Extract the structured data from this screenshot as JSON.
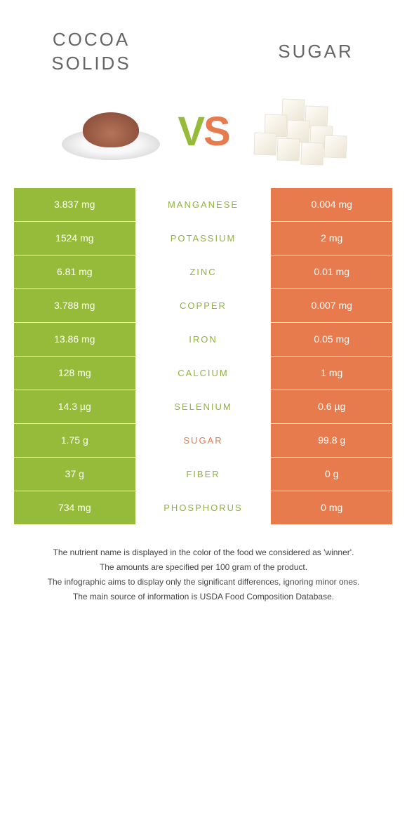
{
  "header": {
    "left_title": "COCOA SOLIDS",
    "right_title": "SUGAR"
  },
  "vs": {
    "v_letter": "V",
    "s_letter": "S",
    "left_color": "#96bb3a",
    "right_color": "#e77b4d"
  },
  "colors": {
    "left_bg": "#96bb3a",
    "right_bg": "#e77b4d",
    "mid_text_green": "#8fb43a",
    "mid_text_orange": "#e77b4d",
    "cell_text": "#ffffff"
  },
  "rows": [
    {
      "left": "3.837 mg",
      "label": "Manganese",
      "right": "0.004 mg",
      "label_color": "#8fb43a"
    },
    {
      "left": "1524 mg",
      "label": "Potassium",
      "right": "2 mg",
      "label_color": "#8fb43a"
    },
    {
      "left": "6.81 mg",
      "label": "Zinc",
      "right": "0.01 mg",
      "label_color": "#8fb43a"
    },
    {
      "left": "3.788 mg",
      "label": "Copper",
      "right": "0.007 mg",
      "label_color": "#8fb43a"
    },
    {
      "left": "13.86 mg",
      "label": "Iron",
      "right": "0.05 mg",
      "label_color": "#8fb43a"
    },
    {
      "left": "128 mg",
      "label": "Calcium",
      "right": "1 mg",
      "label_color": "#8fb43a"
    },
    {
      "left": "14.3 µg",
      "label": "Selenium",
      "right": "0.6 µg",
      "label_color": "#8fb43a"
    },
    {
      "left": "1.75 g",
      "label": "Sugar",
      "right": "99.8 g",
      "label_color": "#e77b4d"
    },
    {
      "left": "37 g",
      "label": "Fiber",
      "right": "0 g",
      "label_color": "#8fb43a"
    },
    {
      "left": "734 mg",
      "label": "Phosphorus",
      "right": "0 mg",
      "label_color": "#8fb43a"
    }
  ],
  "footer": {
    "lines": [
      "The nutrient name is displayed in the color of the food we considered as 'winner'.",
      "The amounts are specified per 100 gram of the product.",
      "The infographic aims to display only the significant differences, ignoring minor ones.",
      "The main source of information is USDA Food Composition Database."
    ]
  }
}
